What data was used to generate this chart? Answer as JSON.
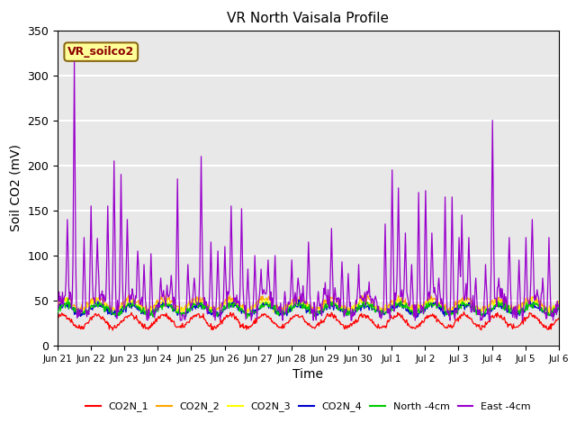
{
  "title": "VR North Vaisala Profile",
  "ylabel": "Soil CO2 (mV)",
  "xlabel": "Time",
  "ylim": [
    0,
    350
  ],
  "annotation_text": "VR_soilco2",
  "annotation_facecolor": "#FFFF99",
  "annotation_edgecolor": "#8B6914",
  "series_colors": {
    "CO2N_1": "#FF0000",
    "CO2N_2": "#FFA500",
    "CO2N_3": "#FFFF00",
    "CO2N_4": "#0000CD",
    "North_4cm": "#00CC00",
    "East_4cm": "#9900CC"
  },
  "legend_labels": [
    "CO2N_1",
    "CO2N_2",
    "CO2N_3",
    "CO2N_4",
    "North -4cm",
    "East -4cm"
  ],
  "background_color": "#E8E8E8",
  "grid_color": "#FFFFFF",
  "xtick_labels": [
    "Jun 21",
    "Jun 22",
    "Jun 23",
    "Jun 24",
    "Jun 25",
    "Jun 26",
    "Jun 27",
    "Jun 28",
    "Jun 29",
    "Jun 30",
    "Jul 1",
    "Jul 2",
    "Jul 3",
    "Jul 4",
    "Jul 5",
    "Jul 6"
  ]
}
